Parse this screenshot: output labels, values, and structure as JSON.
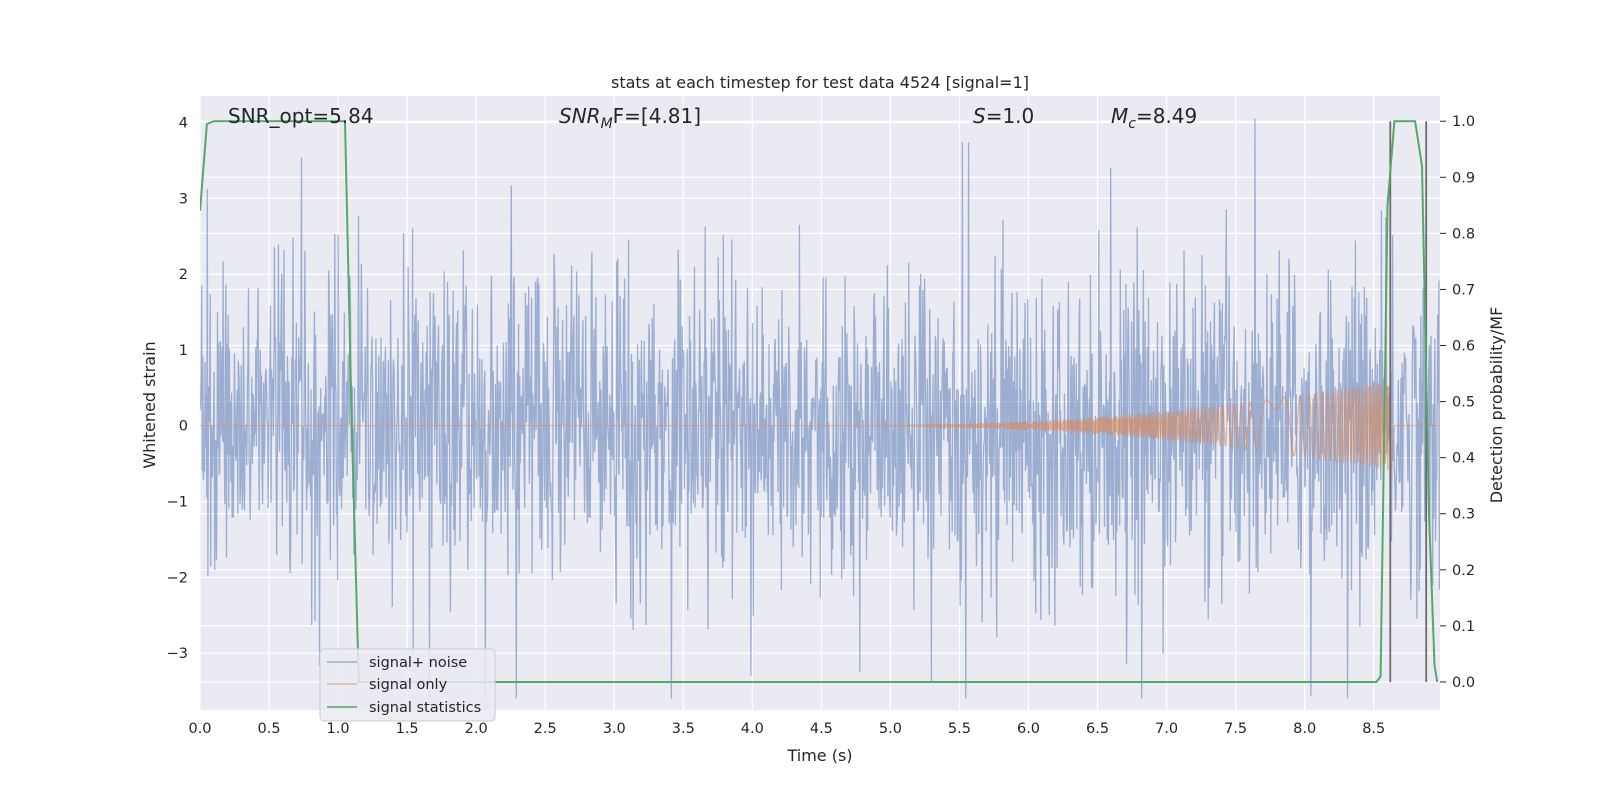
{
  "chart_data": {
    "type": "line",
    "title": "stats at each timestep for test data 4524 [signal=1]",
    "xlabel": "Time (s)",
    "ylabel": "Whitened strain",
    "y2label": "Detection probability/MF",
    "xlim": [
      0,
      8.98
    ],
    "ylim": [
      -3.75,
      4.35
    ],
    "y2lim": [
      -0.05,
      1.045
    ],
    "xticks": [
      "0.0",
      "0.5",
      "1.0",
      "1.5",
      "2.0",
      "2.5",
      "3.0",
      "3.5",
      "4.0",
      "4.5",
      "5.0",
      "5.5",
      "6.0",
      "6.5",
      "7.0",
      "7.5",
      "8.0",
      "8.5"
    ],
    "yticks": [
      "−3",
      "−2",
      "−1",
      "0",
      "1",
      "2",
      "3",
      "4"
    ],
    "y2ticks": [
      "0.0",
      "0.1",
      "0.2",
      "0.3",
      "0.4",
      "0.5",
      "0.6",
      "0.7",
      "0.8",
      "0.9",
      "1.0"
    ],
    "grid": true,
    "legend_position": "lower-left",
    "annotations": {
      "snr_opt": "SNR_opt=5.84",
      "snr_mf_main": "SNR",
      "snr_mf_sub": "M",
      "snr_mf_rest": "F=[4.81]",
      "s_var": "S",
      "s_rest": "=1.0",
      "mc_var": "M",
      "mc_sub": "c",
      "mc_rest": "=8.49"
    },
    "series": [
      {
        "name": "signal+ noise",
        "color": "#4c72b0",
        "description": "whitened strain, noise amplitude ~±1.5 with spikes up to ±4"
      },
      {
        "name": "signal only",
        "color": "#dd8452",
        "chirp_start": 4.6,
        "chirp_end": 8.62,
        "max_amplitude": 0.6
      },
      {
        "name": "signal statistics",
        "color": "#55a868",
        "axis": "right",
        "x": [
          0.0,
          0.05,
          0.1,
          0.2,
          0.3,
          0.4,
          0.5,
          0.6,
          0.7,
          0.8,
          0.9,
          1.0,
          1.05,
          1.1,
          1.15,
          1.2,
          2.0,
          3.0,
          4.0,
          5.0,
          6.0,
          7.0,
          8.0,
          8.52,
          8.55,
          8.6,
          8.65,
          8.7,
          8.8,
          8.85,
          8.9,
          8.94,
          8.96
        ],
        "y": [
          0.84,
          0.995,
          1.0,
          1.0,
          1.0,
          1.0,
          1.0,
          1.0,
          1.0,
          1.0,
          1.0,
          1.0,
          1.0,
          0.45,
          0.0,
          0.0,
          0.0,
          0.0,
          0.0,
          0.0,
          0.0,
          0.0,
          0.0,
          0.0,
          0.01,
          0.85,
          1.0,
          1.0,
          1.0,
          0.92,
          0.3,
          0.03,
          0.0
        ]
      }
    ],
    "vlines": [
      8.62,
      8.88
    ],
    "vline_color": "#6b6b6b"
  }
}
